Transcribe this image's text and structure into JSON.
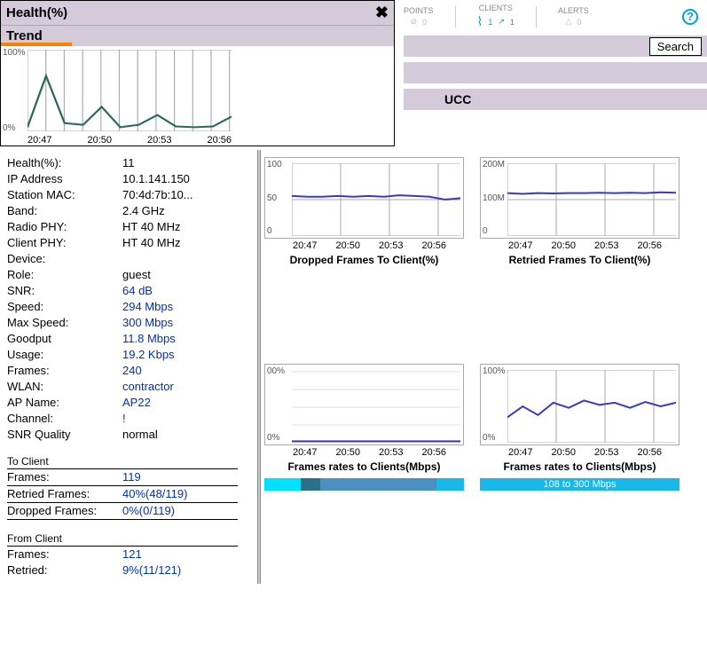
{
  "health_panel": {
    "title": "Health(%)",
    "trend_label": "Trend",
    "chart": {
      "type": "line",
      "x_labels": [
        "20:47",
        "20:50",
        "20:53",
        "20:56"
      ],
      "y_labels": [
        "0%",
        "100%"
      ],
      "ylim": [
        0,
        100
      ],
      "values": [
        5,
        68,
        10,
        8,
        30,
        5,
        8,
        20,
        6,
        5,
        6,
        18
      ],
      "line_color": "#2a6a5a",
      "grid_color": "#aaaaaa",
      "underline_color": "#ff8000"
    }
  },
  "indicators": {
    "points": {
      "label": "POINTS",
      "value": "0",
      "color": "#bbbbbb"
    },
    "clients": {
      "label": "CLIENTS",
      "wifi": "1",
      "wired": "1",
      "color": "#00a0e0"
    },
    "alerts": {
      "label": "ALERTS",
      "value": "0",
      "color": "#bbbbbb"
    }
  },
  "search_label": "Search",
  "ucc_label": "UCC",
  "details": {
    "rows": [
      {
        "label": "Health(%):",
        "value": "11",
        "link": false
      },
      {
        "label": "IP Address",
        "value": "10.1.141.150",
        "link": false
      },
      {
        "label": "Station MAC:",
        "value": "70:4d:7b:10...",
        "link": false
      },
      {
        "label": "Band:",
        "value": "2.4 GHz",
        "link": false
      },
      {
        "label": "Radio PHY:",
        "value": "HT 40 MHz",
        "link": false
      },
      {
        "label": "Client PHY:",
        "value": "HT 40 MHz",
        "link": false
      },
      {
        "label": "Device:",
        "value": "",
        "link": false
      },
      {
        "label": "Role:",
        "value": "guest",
        "link": false
      },
      {
        "label": "SNR:",
        "value": "64 dB",
        "link": true
      },
      {
        "label": "Speed:",
        "value": "294 Mbps",
        "link": true
      },
      {
        "label": "Max Speed:",
        "value": "300 Mbps",
        "link": true
      },
      {
        "label": "Goodput",
        "value": "11.8 Mbps",
        "link": true
      },
      {
        "label": "Usage:",
        "value": "19.2 Kbps",
        "link": true
      },
      {
        "label": "Frames:",
        "value": "240",
        "link": true
      },
      {
        "label": "WLAN:",
        "value": "contractor",
        "link": true
      },
      {
        "label": "AP Name:",
        "value": "AP22",
        "link": true
      },
      {
        "label": "Channel:",
        "value": "!",
        "link": true
      },
      {
        "label": "SNR Quality",
        "value": "normal",
        "link": false
      }
    ],
    "to_client": {
      "header": "To Client",
      "rows": [
        {
          "label": "Frames:",
          "value": "119"
        },
        {
          "label": "Retried Frames:",
          "value": "40%(48/119)"
        },
        {
          "label": "Dropped Frames:",
          "value": "0%(0/119)"
        }
      ]
    },
    "from_client": {
      "header": "From Client",
      "rows": [
        {
          "label": "Frames:",
          "value": "121"
        },
        {
          "label": "Retried:",
          "value": "9%(11/121)"
        }
      ]
    }
  },
  "charts": {
    "dropped": {
      "title": "Dropped Frames To Client(%)",
      "type": "line",
      "y_labels": [
        "0",
        "50",
        "100"
      ],
      "ylim": [
        0,
        100
      ],
      "x_labels": [
        "20:47",
        "20:50",
        "20:53",
        "20:56"
      ],
      "values": [
        55,
        54,
        54,
        55,
        54,
        55,
        54,
        56,
        55,
        54,
        50,
        52
      ],
      "line_color": "#3a3ac0",
      "grid_color": "#aaaaaa"
    },
    "retried": {
      "title": "Retried Frames To Client(%)",
      "type": "line",
      "y_labels": [
        "0",
        "100M",
        "200M"
      ],
      "ylim": [
        0,
        200
      ],
      "x_labels": [
        "20:47",
        "20:50",
        "20:53",
        "20:56"
      ],
      "values": [
        118,
        116,
        118,
        117,
        118,
        118,
        119,
        118,
        119,
        118,
        120,
        119
      ],
      "line_color": "#3a3ac0",
      "grid_color": "#aaaaaa"
    },
    "rates1": {
      "title": "Frames rates to Clients(Mbps)",
      "type": "line",
      "y_labels": [
        "0%",
        "00%"
      ],
      "ylim": [
        0,
        100
      ],
      "x_labels": [
        "20:47",
        "20:50",
        "20:53",
        "20:56"
      ],
      "values": [
        2,
        2,
        2,
        2,
        2,
        2,
        2,
        2,
        2,
        2,
        2,
        2
      ],
      "line_color": "#3a3ac0",
      "grid_color": "#cccccc",
      "legend_segments": [
        {
          "color": "#00e0ff",
          "width": 18
        },
        {
          "color": "#2a7088",
          "width": 10
        },
        {
          "color": "#4a90c0",
          "width": 58
        },
        {
          "color": "#18b8e8",
          "width": 14
        }
      ]
    },
    "rates2": {
      "title": "Frames rates to Clients(Mbps)",
      "type": "line",
      "y_labels": [
        "0%",
        "100%"
      ],
      "ylim": [
        0,
        100
      ],
      "x_labels": [
        "20:47",
        "20:50",
        "20:53",
        "20:56"
      ],
      "values": [
        35,
        50,
        38,
        55,
        48,
        58,
        52,
        55,
        48,
        56,
        50,
        55
      ],
      "line_color": "#3a3ac0",
      "grid_color": "#aaaaaa",
      "legend_text": "108 to 300 Mbps"
    }
  }
}
